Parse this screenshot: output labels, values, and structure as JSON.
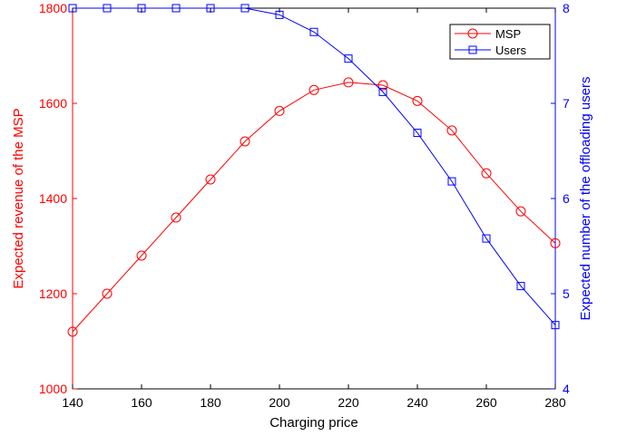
{
  "chart_data": {
    "type": "line",
    "title": "",
    "xlabel": "Charging price",
    "ylabel_left": "Expected revenue of the MSP",
    "ylabel_right": "Expected number of the offloading users",
    "x": [
      140,
      150,
      160,
      170,
      180,
      190,
      200,
      210,
      220,
      230,
      240,
      250,
      260,
      270,
      280
    ],
    "xlim": [
      140,
      280
    ],
    "ylim_left": [
      1000,
      1800
    ],
    "ylim_right": [
      4,
      8
    ],
    "xticks": [
      "140",
      "160",
      "180",
      "200",
      "220",
      "240",
      "260",
      "280"
    ],
    "yticks_left": [
      "1000",
      "1200",
      "1400",
      "1600",
      "1800"
    ],
    "yticks_right": [
      "4",
      "5",
      "6",
      "7",
      "8"
    ],
    "grid": false,
    "legend_position": "top-right",
    "series": [
      {
        "name": "MSP",
        "axis": "left",
        "color": "#ff0000",
        "marker": "circle",
        "values": [
          1120,
          1200,
          1280,
          1360,
          1440,
          1520,
          1584,
          1628,
          1644,
          1638,
          1605,
          1543,
          1453,
          1373,
          1306
        ]
      },
      {
        "name": "Users",
        "axis": "right",
        "color": "#0000ff",
        "marker": "square",
        "values": [
          8.0,
          8.0,
          8.0,
          8.0,
          8.0,
          8.0,
          7.93,
          7.75,
          7.47,
          7.12,
          6.69,
          6.18,
          5.58,
          5.08,
          4.67
        ]
      }
    ]
  }
}
